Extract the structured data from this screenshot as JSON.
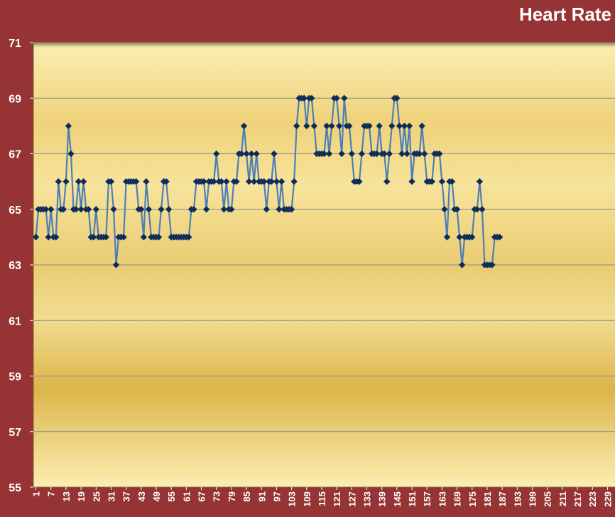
{
  "chart_data": {
    "type": "line",
    "title": "Heart Rate",
    "ylim": [
      55,
      71
    ],
    "yticks": [
      55,
      57,
      59,
      61,
      63,
      65,
      67,
      69,
      71
    ],
    "xlim": [
      1,
      232
    ],
    "xticks": [
      "1",
      "7",
      "13",
      "19",
      "25",
      "31",
      "37",
      "43",
      "49",
      "55",
      "61",
      "67",
      "73",
      "79",
      "85",
      "91",
      "97",
      "103",
      "109",
      "115",
      "121",
      "127",
      "133",
      "139",
      "145",
      "151",
      "157",
      "163",
      "169",
      "175",
      "181",
      "187",
      "193",
      "199",
      "205",
      "211",
      "217",
      "223",
      "229"
    ],
    "grid": true,
    "legend": "none",
    "series": [
      {
        "values": [
          64,
          65,
          65,
          65,
          65,
          64,
          65,
          64,
          64,
          66,
          65,
          65,
          66,
          68,
          67,
          65,
          65,
          66,
          65,
          66,
          65,
          65,
          64,
          64,
          65,
          64,
          64,
          64,
          64,
          66,
          66,
          65,
          63,
          64,
          64,
          64,
          66,
          66,
          66,
          66,
          66,
          65,
          65,
          64,
          66,
          65,
          64,
          64,
          64,
          64,
          65,
          66,
          66,
          65,
          64,
          64,
          64,
          64,
          64,
          64,
          64,
          64,
          65,
          65,
          66,
          66,
          66,
          66,
          65,
          66,
          66,
          66,
          67,
          66,
          66,
          65,
          66,
          65,
          65,
          66,
          66,
          67,
          67,
          68,
          67,
          66,
          67,
          66,
          67,
          66,
          66,
          66,
          65,
          66,
          66,
          67,
          66,
          65,
          66,
          65,
          65,
          65,
          65,
          66,
          68,
          69,
          69,
          69,
          68,
          69,
          69,
          68,
          67,
          67,
          67,
          67,
          68,
          67,
          68,
          69,
          69,
          68,
          67,
          69,
          68,
          68,
          67,
          66,
          66,
          66,
          67,
          68,
          68,
          68,
          67,
          67,
          67,
          68,
          67,
          67,
          66,
          67,
          68,
          69,
          69,
          68,
          67,
          68,
          67,
          68,
          66,
          67,
          67,
          67,
          68,
          67,
          66,
          66,
          66,
          67,
          67,
          67,
          66,
          65,
          64,
          66,
          66,
          65,
          65,
          64,
          63,
          64,
          64,
          64,
          64,
          65,
          65,
          66,
          65,
          63,
          63,
          63,
          63,
          64,
          64,
          64
        ]
      }
    ],
    "colors": {
      "background": "#953335",
      "line": "#4c7fb7",
      "marker": "#0e2b55",
      "grid": "#8a8a8a",
      "plot_light": "#fbeeb2",
      "plot_dark": "#dcb54a"
    }
  }
}
